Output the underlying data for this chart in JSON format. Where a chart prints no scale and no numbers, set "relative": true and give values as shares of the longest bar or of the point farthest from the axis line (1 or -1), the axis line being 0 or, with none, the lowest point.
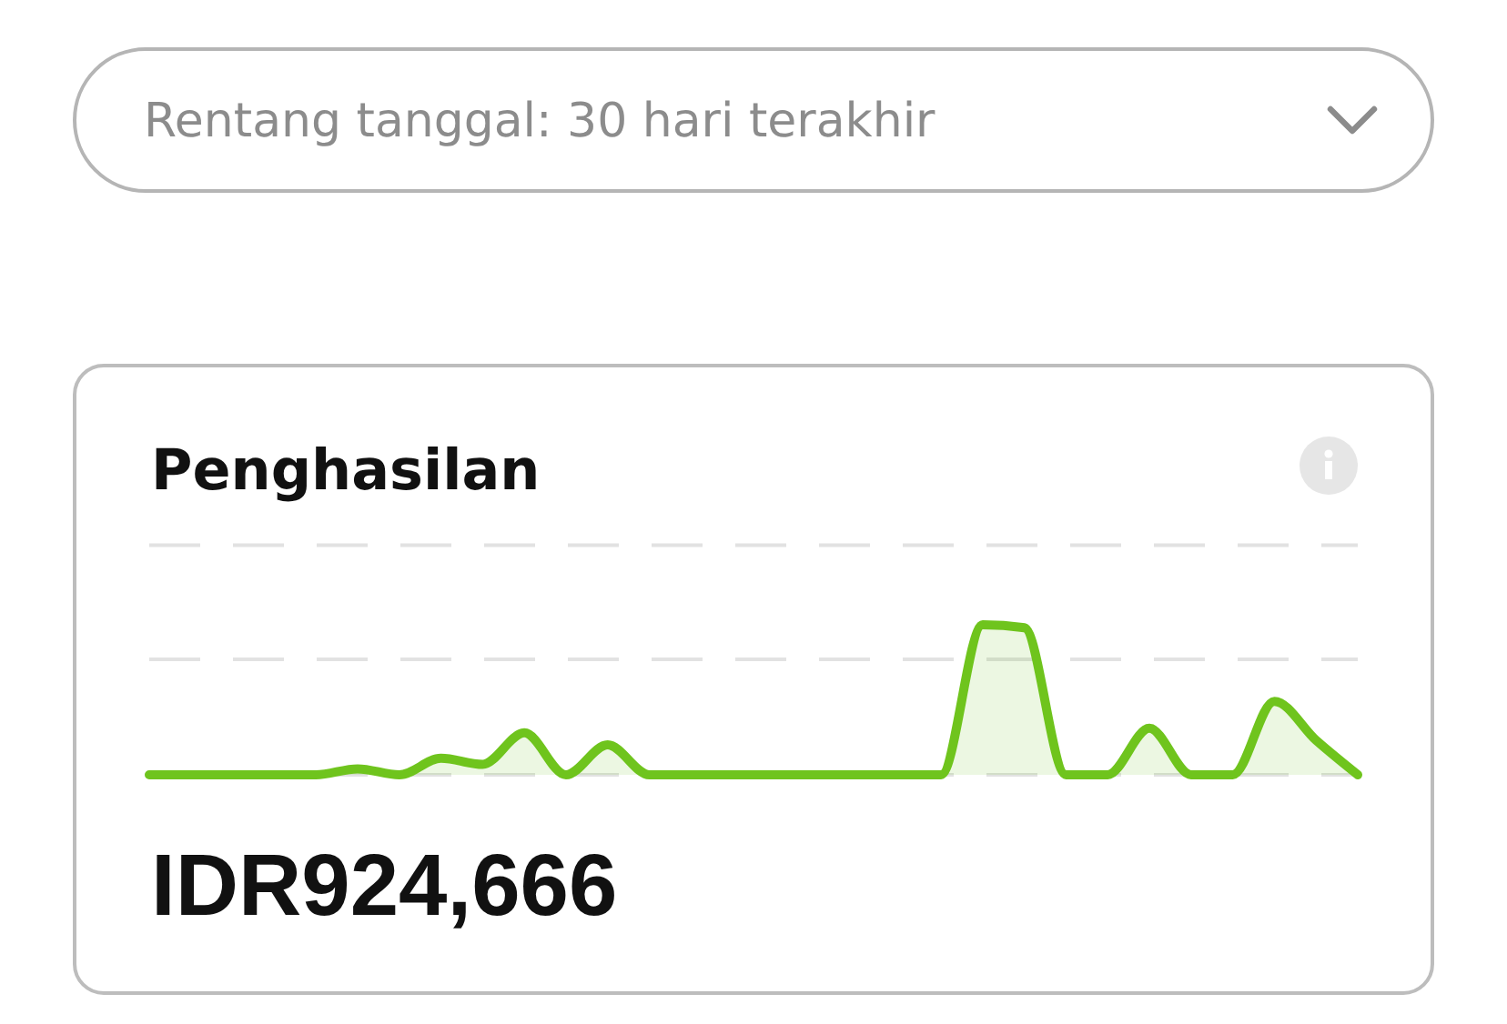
{
  "chart_data": {
    "type": "area",
    "title": "Penghasilan",
    "subtitle": "Rentang tanggal: 30 hari terakhir",
    "categories": [
      null,
      null,
      null,
      null,
      null,
      null,
      null,
      null,
      null,
      null,
      null,
      null,
      null,
      null,
      null,
      null,
      null,
      null,
      null,
      null,
      null,
      null,
      null,
      null,
      null,
      null,
      null,
      null,
      null,
      null
    ],
    "relative": true,
    "series": [
      {
        "color": "#6fc41d",
        "values": [
          0,
          0,
          0,
          0,
          0,
          0.04,
          0,
          0.11,
          0.07,
          0.28,
          0,
          0.2,
          0,
          0,
          0,
          0,
          0,
          0,
          0,
          0,
          1,
          0.98,
          0,
          0,
          0.31,
          0,
          0,
          0.49,
          0.23,
          0
        ]
      }
    ],
    "ref_lines": [
      {
        "axis": "y",
        "value": 0.77,
        "color": "#e2e2e2",
        "line_style": "dashed"
      },
      {
        "axis": "y",
        "value": 1.53,
        "color": "#e2e2e2",
        "line_style": "dashed"
      }
    ],
    "annotations": [
      "IDR924,666"
    ]
  }
}
